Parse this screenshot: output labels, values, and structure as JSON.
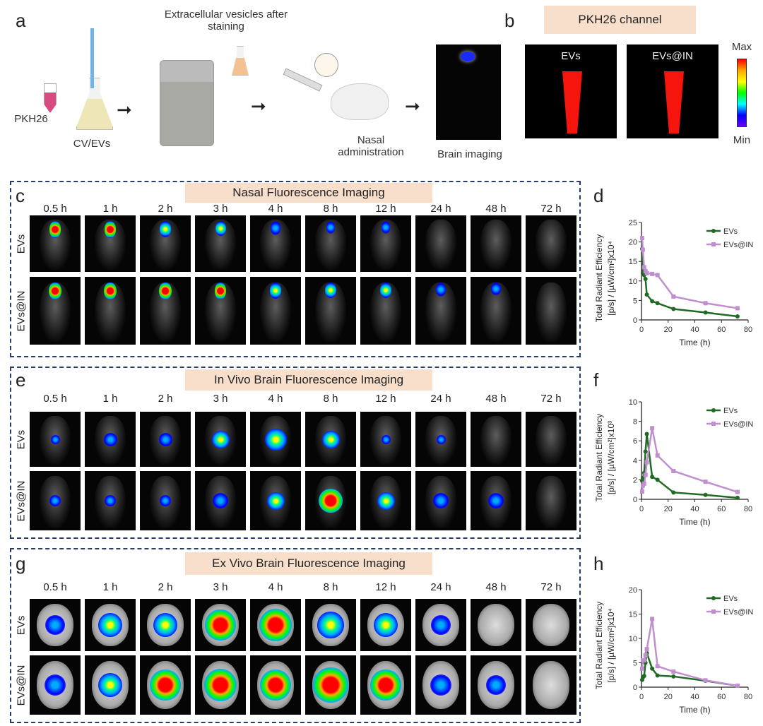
{
  "panel_labels": {
    "a": "a",
    "b": "b",
    "c": "c",
    "d": "d",
    "e": "e",
    "f": "f",
    "g": "g",
    "h": "h"
  },
  "panel_a": {
    "pkh26": "PKH26",
    "cv_evs": "CV/EVs",
    "ev_staining": "Extracellular vesicles after staining",
    "nasal": "Nasal administration",
    "brain_imaging": "Brain imaging"
  },
  "panel_b": {
    "title": "PKH26 channel",
    "evs": "EVs",
    "evs_in": "EVs@IN",
    "max": "Max",
    "min": "Min"
  },
  "times": [
    "0.5 h",
    "1 h",
    "2 h",
    "3 h",
    "4 h",
    "8 h",
    "12 h",
    "24 h",
    "48 h",
    "72 h"
  ],
  "rows": [
    "EVs",
    "EVs@IN"
  ],
  "panel_c": {
    "title": "Nasal Fluorescence Imaging",
    "signal": [
      [
        0.8,
        0.8,
        0.7,
        0.5,
        0.4,
        0.1,
        0.1,
        0,
        0,
        0
      ],
      [
        0.9,
        0.9,
        0.9,
        0.8,
        0.7,
        0.6,
        0.6,
        0.4,
        0.2,
        0
      ]
    ]
  },
  "panel_e": {
    "title": "In Vivo Brain Fluorescence Imaging",
    "signal": [
      [
        0.1,
        0.3,
        0.3,
        0.5,
        0.7,
        0.5,
        0.1,
        0.1,
        0,
        0
      ],
      [
        0.2,
        0.2,
        0.2,
        0.4,
        0.5,
        0.8,
        0.5,
        0.4,
        0.4,
        0
      ]
    ]
  },
  "panel_g": {
    "title": "Ex Vivo Brain Fluorescence Imaging",
    "signal": [
      [
        0.3,
        0.5,
        0.5,
        0.8,
        0.9,
        0.6,
        0.5,
        0.3,
        0,
        0
      ],
      [
        0.4,
        0.5,
        0.8,
        0.9,
        0.8,
        1.0,
        0.8,
        0.4,
        0.3,
        0
      ]
    ]
  },
  "chart_data": [
    {
      "id": "d",
      "type": "line",
      "xlabel": "Time (h)",
      "ylabel": [
        "Total Radiant Efficiency",
        "[p/s] / [µW/cm²]x10⁴"
      ],
      "xlim": [
        0,
        80
      ],
      "ylim": [
        0,
        25
      ],
      "xticks": [
        0,
        20,
        40,
        60,
        80
      ],
      "yticks": [
        0,
        5,
        10,
        15,
        20,
        25
      ],
      "legend": "top-right",
      "x": [
        0.5,
        1,
        2,
        3,
        4,
        8,
        12,
        24,
        48,
        72
      ],
      "series": [
        {
          "name": "EVs",
          "color": "#1f6b23",
          "marker": "circle",
          "values": [
            18.2,
            12,
            11.5,
            10.5,
            6.5,
            4.8,
            4.3,
            2.8,
            1.9,
            0.9
          ]
        },
        {
          "name": "EVs@IN",
          "color": "#c08fd0",
          "marker": "square",
          "values": [
            21,
            18,
            13.5,
            12.5,
            12,
            11.8,
            11.5,
            6,
            4.3,
            3
          ]
        }
      ]
    },
    {
      "id": "f",
      "type": "line",
      "xlabel": "Time (h)",
      "ylabel": [
        "Total Radiant Efficiency",
        "[p/s] / [µW/cm²]x10³"
      ],
      "xlim": [
        0,
        80
      ],
      "ylim": [
        0,
        10
      ],
      "xticks": [
        0,
        20,
        40,
        60,
        80
      ],
      "yticks": [
        0,
        2,
        4,
        6,
        8,
        10
      ],
      "legend": "top-right",
      "x": [
        0.5,
        1,
        2,
        3,
        4,
        8,
        12,
        24,
        48,
        72
      ],
      "series": [
        {
          "name": "EVs",
          "color": "#1f6b23",
          "marker": "circle",
          "values": [
            1.9,
            2.2,
            2.7,
            4.9,
            6.7,
            2.3,
            2.0,
            0.7,
            0.45,
            0.15
          ]
        },
        {
          "name": "EVs@IN",
          "color": "#c08fd0",
          "marker": "square",
          "values": [
            0.8,
            1.4,
            1.6,
            2.5,
            3.8,
            7.3,
            4.5,
            2.9,
            1.8,
            0.75
          ]
        }
      ]
    },
    {
      "id": "h",
      "type": "line",
      "xlabel": "Time (h)",
      "ylabel": [
        "Total Radiant Efficiency",
        "[p/s] / [µW/cm²]x10⁴"
      ],
      "xlim": [
        0,
        80
      ],
      "ylim": [
        0,
        20
      ],
      "xticks": [
        0,
        20,
        40,
        60,
        80
      ],
      "yticks": [
        0,
        5,
        10,
        15,
        20
      ],
      "legend": "top-right",
      "x": [
        0.5,
        1,
        2,
        3,
        4,
        8,
        12,
        24,
        48,
        72
      ],
      "series": [
        {
          "name": "EVs",
          "color": "#1f6b23",
          "marker": "circle",
          "values": [
            1.5,
            2.0,
            2.3,
            5.0,
            7.0,
            3.8,
            2.4,
            2.2,
            1.3,
            0.3
          ]
        },
        {
          "name": "EVs@IN",
          "color": "#c08fd0",
          "marker": "square",
          "values": [
            3.8,
            5.5,
            5.5,
            6.5,
            7.8,
            14,
            4.3,
            3.2,
            1.4,
            0.3
          ]
        }
      ]
    }
  ]
}
